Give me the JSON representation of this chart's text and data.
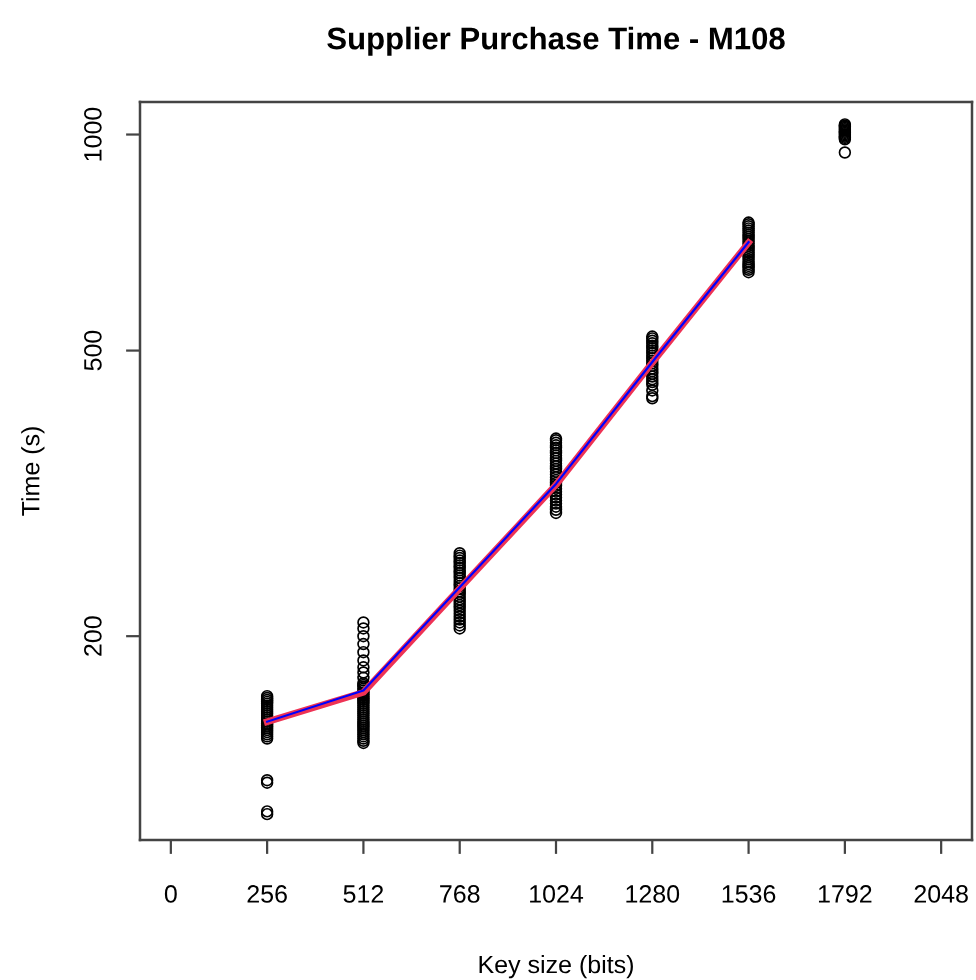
{
  "chart_data": {
    "type": "scatter",
    "title": "Supplier Purchase Time - M108",
    "xlabel": "Key size (bits)",
    "ylabel": "Time (s)",
    "log": "y",
    "grid": false,
    "xlim": [
      -82,
      2130
    ],
    "xticks": [
      0,
      256,
      512,
      768,
      1024,
      1280,
      1536,
      1792,
      2048
    ],
    "ylim": [
      104,
      1110
    ],
    "yticks": [
      200,
      500,
      1000
    ],
    "series": [
      {
        "color": "#000000",
        "marker": "circle",
        "x": [
          256,
          256,
          256,
          256,
          256,
          256,
          256,
          256,
          256,
          256,
          256,
          256,
          256,
          256,
          256,
          256,
          256,
          256,
          256,
          256,
          256,
          256,
          256,
          256,
          256,
          256,
          512,
          512,
          512,
          512,
          512,
          512,
          512,
          512,
          512,
          512,
          512,
          512,
          512,
          512,
          512,
          512,
          512,
          512,
          512,
          512,
          512,
          512,
          512,
          512,
          512,
          512,
          512,
          512,
          512,
          512,
          512,
          512,
          512,
          512,
          512,
          512,
          512,
          512,
          512,
          512,
          768,
          768,
          768,
          768,
          768,
          768,
          768,
          768,
          768,
          768,
          768,
          768,
          768,
          768,
          768,
          768,
          768,
          768,
          768,
          768,
          768,
          768,
          768,
          768,
          768,
          768,
          768,
          768,
          768,
          1024,
          1024,
          1024,
          1024,
          1024,
          1024,
          1024,
          1024,
          1024,
          1024,
          1024,
          1024,
          1024,
          1024,
          1024,
          1024,
          1024,
          1024,
          1024,
          1024,
          1024,
          1024,
          1024,
          1024,
          1024,
          1024,
          1024,
          1024,
          1280,
          1280,
          1280,
          1280,
          1280,
          1280,
          1280,
          1280,
          1280,
          1280,
          1280,
          1280,
          1280,
          1280,
          1280,
          1280,
          1280,
          1280,
          1280,
          1280,
          1280,
          1280,
          1280,
          1536,
          1536,
          1536,
          1536,
          1536,
          1536,
          1536,
          1536,
          1536,
          1536,
          1536,
          1536,
          1536,
          1536,
          1536,
          1536,
          1536,
          1536,
          1536,
          1536,
          1536,
          1536,
          1536,
          1536,
          1792,
          1792,
          1792,
          1792,
          1792,
          1792,
          1792,
          1792,
          1792,
          1792,
          1792,
          1792,
          1792,
          1792
        ],
        "values": [
          113,
          114,
          125,
          126,
          144,
          145,
          146,
          147,
          148,
          149,
          150,
          151,
          152,
          153,
          154,
          155,
          156,
          157,
          158,
          159,
          160,
          161,
          162,
          163,
          164,
          165,
          142,
          143,
          144,
          145,
          146,
          147,
          148,
          149,
          150,
          151,
          152,
          153,
          154,
          155,
          156,
          157,
          158,
          159,
          160,
          161,
          162,
          163,
          164,
          165,
          166,
          167,
          168,
          169,
          170,
          171,
          172,
          175,
          178,
          181,
          185,
          190,
          195,
          200,
          205,
          209,
          205,
          207,
          209,
          211,
          213,
          215,
          217,
          219,
          221,
          223,
          225,
          227,
          229,
          231,
          233,
          235,
          237,
          239,
          241,
          243,
          245,
          247,
          249,
          251,
          253,
          255,
          257,
          259,
          261,
          297,
          300,
          303,
          306,
          309,
          312,
          315,
          318,
          321,
          324,
          327,
          330,
          333,
          336,
          339,
          342,
          345,
          348,
          351,
          354,
          357,
          360,
          363,
          366,
          369,
          372,
          375,
          377,
          429,
          432,
          440,
          448,
          452,
          456,
          460,
          464,
          468,
          472,
          476,
          480,
          484,
          488,
          492,
          496,
          500,
          504,
          508,
          512,
          516,
          520,
          523,
          643,
          648,
          652,
          656,
          660,
          665,
          670,
          675,
          680,
          685,
          690,
          695,
          700,
          705,
          710,
          715,
          720,
          725,
          730,
          735,
          740,
          745,
          750,
          754,
          944,
          985,
          989,
          993,
          997,
          1001,
          1005,
          1009,
          1013,
          1017,
          1021,
          1025,
          1029,
          1033
        ]
      },
      {
        "type": "line",
        "color": "#ee3355",
        "marker": "none",
        "x": [
          256,
          512,
          768,
          1024,
          1280,
          1536
        ],
        "values": [
          152,
          167,
          233,
          325,
          481,
          707
        ]
      },
      {
        "type": "line",
        "color": "#0000ff",
        "marker": "none",
        "x": [
          256,
          512,
          768,
          1024,
          1280,
          1536
        ],
        "values": [
          152,
          168,
          234,
          326,
          482,
          708
        ]
      }
    ]
  }
}
